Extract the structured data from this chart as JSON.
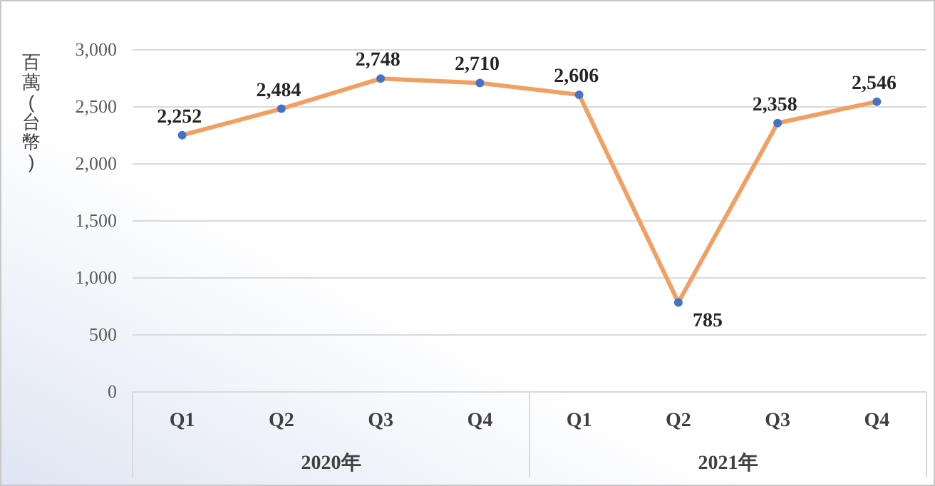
{
  "chart_data": {
    "type": "line",
    "ylabel": "百萬(台幣)",
    "categories": [
      "Q1",
      "Q2",
      "Q3",
      "Q4",
      "Q1",
      "Q2",
      "Q3",
      "Q4"
    ],
    "series": [
      {
        "color": "#f0a063",
        "colors": [
          "#4472c4",
          "#4472c4",
          "#4472c4",
          "#4472c4",
          "#4472c4",
          "#4472c4",
          "#4472c4",
          "#4472c4"
        ],
        "values": [
          2252,
          2484,
          2748,
          2710,
          2606,
          785,
          2358,
          2546
        ],
        "value_labels": [
          "2,252",
          "2,484",
          "2,748",
          "2,710",
          "2,606",
          "785",
          "2,358",
          "2,546"
        ]
      }
    ],
    "marker": "circle",
    "grid": "y",
    "ylim": [
      0,
      3000
    ],
    "yticks": [
      {
        "value": 0,
        "label": "0"
      },
      {
        "value": 500,
        "label": "500"
      },
      {
        "value": 1000,
        "label": "1,000"
      },
      {
        "value": 1500,
        "label": "1,500"
      },
      {
        "value": 2000,
        "label": "2,000"
      },
      {
        "value": 2500,
        "label": "2,500"
      },
      {
        "value": 3000,
        "label": "3,000"
      }
    ],
    "annotations": [
      "2020年",
      "2021年"
    ]
  }
}
